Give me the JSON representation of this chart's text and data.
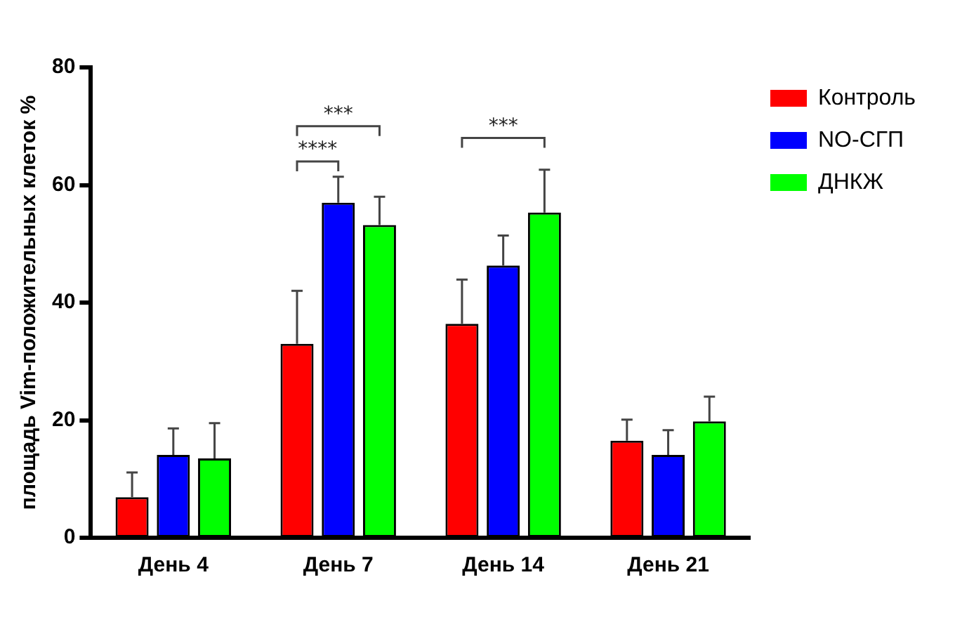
{
  "chart_data": {
    "type": "bar",
    "ylabel": "площадь Vim-положительных клеток %",
    "categories": [
      "День 4",
      "День 7",
      "День 14",
      "День 21"
    ],
    "series": [
      {
        "name": "Контроль",
        "color": "#ff0000",
        "values": [
          6.9,
          33,
          36.4,
          16.5
        ],
        "errors": [
          [
            6.9,
            11.1
          ],
          [
            33,
            42
          ],
          [
            36.4,
            43.9
          ],
          [
            16.5,
            20.1
          ]
        ]
      },
      {
        "name": "NO-СГП",
        "color": "#0000ff",
        "values": [
          14.1,
          57,
          46.3,
          14.1
        ],
        "errors": [
          [
            14.1,
            18.6
          ],
          [
            57,
            61.4
          ],
          [
            46.3,
            51.4
          ],
          [
            14.1,
            18.3
          ]
        ]
      },
      {
        "name": "ДНКЖ",
        "color": "#00ff00",
        "values": [
          13.5,
          53.2,
          55.3,
          19.8
        ],
        "errors": [
          [
            13.5,
            19.5
          ],
          [
            53.2,
            58
          ],
          [
            55.3,
            62.6
          ],
          [
            19.8,
            24
          ]
        ]
      }
    ],
    "ylim": [
      0,
      80
    ],
    "yticks": [
      0,
      20,
      40,
      60,
      80
    ],
    "grid": false,
    "legend": "top right",
    "annotations": [
      "****",
      "***",
      "***"
    ]
  }
}
